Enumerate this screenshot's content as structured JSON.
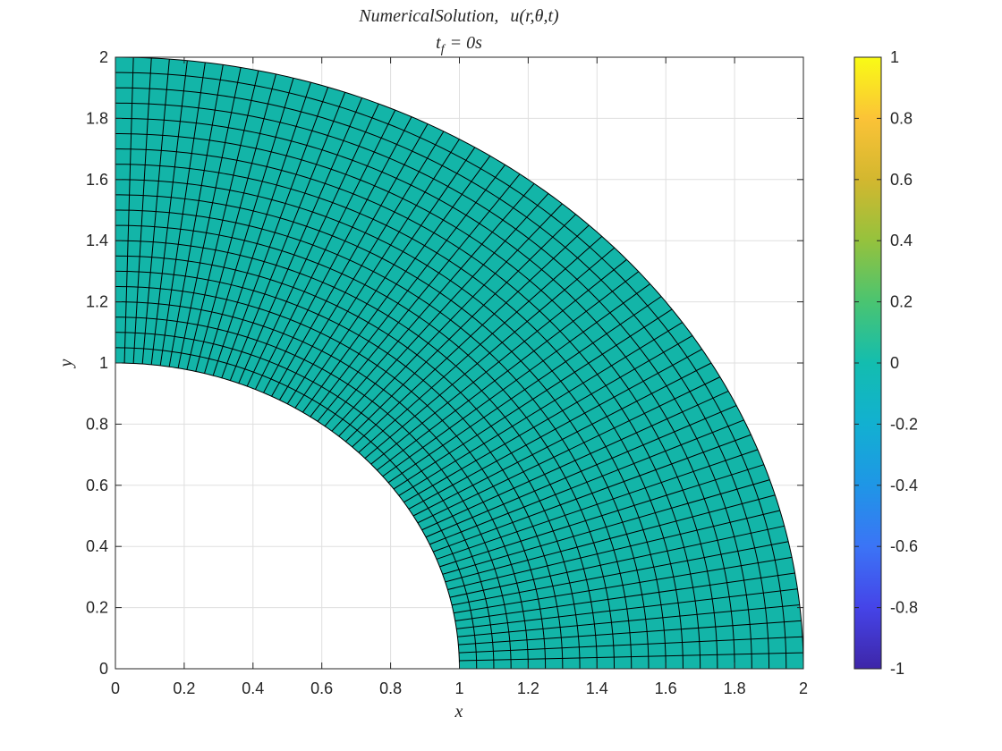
{
  "chart_data": {
    "type": "surface-mesh",
    "title": "NumericalSolution, u(r,θ,t)",
    "subtitle": "t_f = 0s",
    "title_line1_name": "NumericalSolution,",
    "title_line1_func": "u(r,θ,t)",
    "title_line2_prefix": "t",
    "title_line2_sub": "f",
    "title_line2_suffix": "= 0s",
    "xlabel": "x",
    "ylabel": "y",
    "xlim": [
      0,
      2
    ],
    "ylim": [
      0,
      2
    ],
    "xticks": [
      "0",
      "0.2",
      "0.4",
      "0.6",
      "0.8",
      "1",
      "1.2",
      "1.4",
      "1.6",
      "1.8",
      "2"
    ],
    "yticks": [
      "0",
      "0.2",
      "0.4",
      "0.6",
      "0.8",
      "1",
      "1.2",
      "1.4",
      "1.6",
      "1.8",
      "2"
    ],
    "grid": true,
    "domain": {
      "r_min": 1,
      "r_max": 2,
      "theta_min_deg": 0,
      "theta_max_deg": 90,
      "radial_divisions": 20,
      "angular_divisions": 60
    },
    "field_value": 0,
    "fill_color": "#13b5a8",
    "mesh_line_color": "#000000",
    "colorbar": {
      "colormap": "parula",
      "clim": [
        -1,
        1
      ],
      "ticks": [
        "1",
        "0.8",
        "0.6",
        "0.4",
        "0.2",
        "0",
        "-0.2",
        "-0.4",
        "-0.6",
        "-0.8",
        "-1"
      ],
      "stops": [
        "#3e26a8",
        "#4544e8",
        "#3b74f6",
        "#1f96e6",
        "#12b0d1",
        "#13bdaf",
        "#4ac471",
        "#95c23d",
        "#d3b72f",
        "#fbc337",
        "#f9fb15"
      ]
    }
  }
}
